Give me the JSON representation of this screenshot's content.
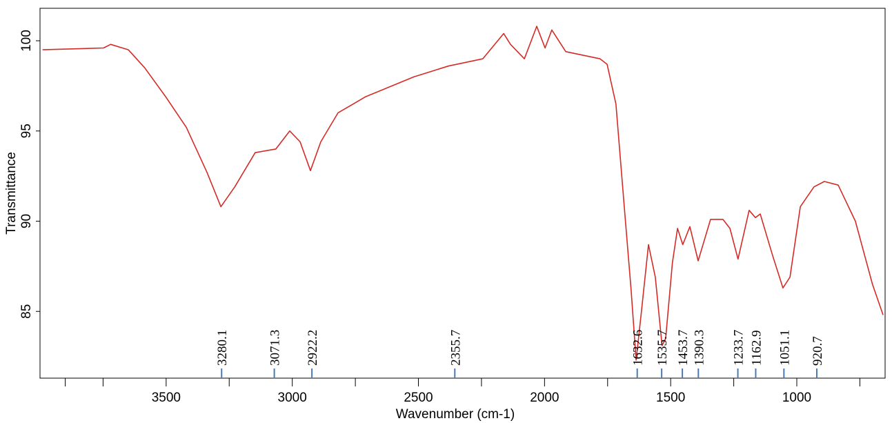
{
  "chart_data": {
    "type": "line",
    "xlabel": "Wavenumber (cm-1)",
    "ylabel": "Transmittance",
    "x": [
      3990,
      3748,
      3720,
      3650,
      3585,
      3502,
      3420,
      3338,
      3283,
      3228,
      3147,
      3065,
      3010,
      2969,
      2928,
      2887,
      2819,
      2709,
      2518,
      2381,
      2245,
      2162,
      2135,
      2080,
      2031,
      1998,
      1971,
      1916,
      1780,
      1752,
      1717,
      1684,
      1657,
      1637,
      1616,
      1588,
      1561,
      1534,
      1520,
      1493,
      1473,
      1452,
      1424,
      1391,
      1342,
      1293,
      1265,
      1233,
      1189,
      1164,
      1145,
      1096,
      1055,
      1027,
      986,
      932,
      891,
      836,
      768,
      700,
      658
    ],
    "series": [
      {
        "color": "#d42a26",
        "values": [
          99.5,
          99.6,
          99.8,
          99.5,
          98.5,
          96.9,
          95.2,
          92.7,
          90.8,
          91.9,
          93.8,
          94.0,
          95.0,
          94.4,
          92.8,
          94.4,
          96.0,
          96.9,
          98.0,
          98.6,
          99.0,
          100.4,
          99.8,
          99.0,
          100.8,
          99.6,
          100.6,
          99.4,
          99.0,
          98.7,
          96.5,
          90.8,
          86.2,
          82.3,
          85.0,
          88.7,
          86.9,
          83.1,
          83.5,
          87.7,
          89.6,
          88.7,
          89.7,
          87.8,
          90.1,
          90.1,
          89.6,
          87.9,
          90.6,
          90.2,
          90.4,
          88.1,
          86.3,
          86.9,
          90.8,
          91.9,
          92.2,
          92.0,
          90.0,
          86.5,
          84.8
        ]
      }
    ],
    "xlim": [
      4000,
      650
    ],
    "ylim": [
      81.3,
      101.8
    ],
    "xticks": [
      3500,
      3000,
      2500,
      2000,
      1500,
      1000
    ],
    "minor_xticks": [
      3900,
      3750,
      3250,
      2750,
      2250,
      1750,
      1250,
      750
    ],
    "yticks": [
      85,
      90,
      95,
      100
    ],
    "peaks": [
      3280.1,
      3071.3,
      2922.2,
      2355.7,
      1632.6,
      1535.7,
      1453.7,
      1390.3,
      1233.7,
      1162.9,
      1051.1,
      920.7
    ],
    "peak_color": "#4a7ab0"
  }
}
